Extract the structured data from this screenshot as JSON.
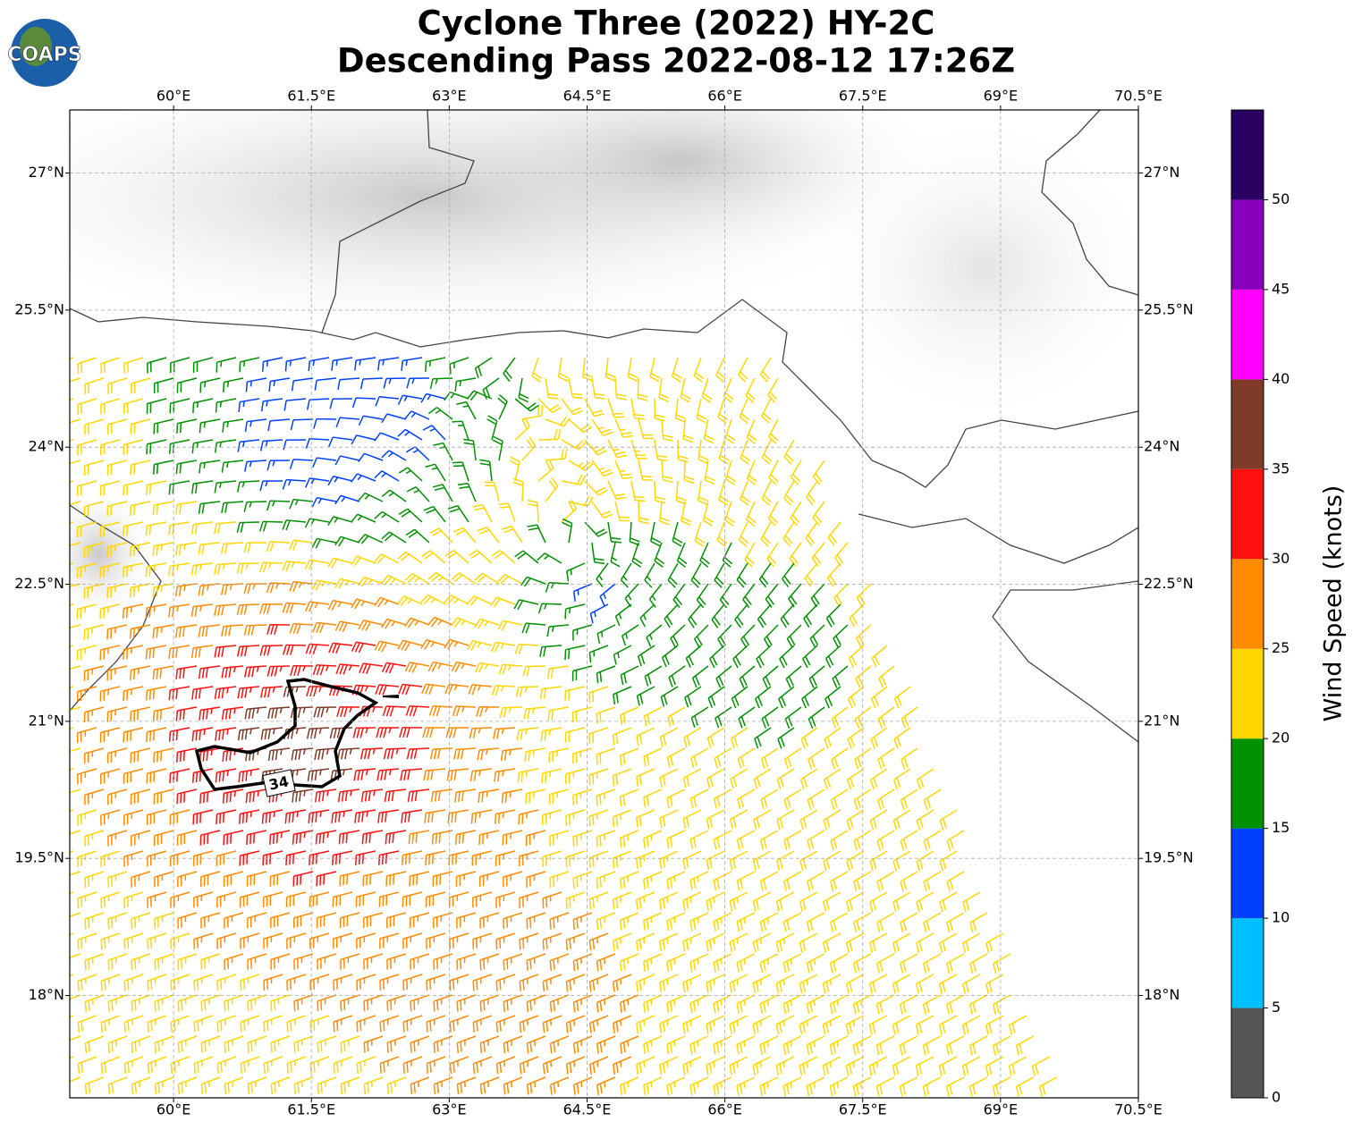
{
  "chart_data": {
    "type": "wind_map",
    "title": "Cyclone Three (2022) HY-2C",
    "subtitle": "Descending Pass 2022-08-12 17:26Z",
    "xlim": [
      58.87,
      70.5
    ],
    "ylim": [
      16.88,
      27.69
    ],
    "xticks": [
      {
        "value": 60,
        "label": "60°E"
      },
      {
        "value": 61.5,
        "label": "61.5°E"
      },
      {
        "value": 63,
        "label": "63°E"
      },
      {
        "value": 64.5,
        "label": "64.5°E"
      },
      {
        "value": 66,
        "label": "66°E"
      },
      {
        "value": 67.5,
        "label": "67.5°E"
      },
      {
        "value": 69,
        "label": "69°E"
      },
      {
        "value": 70.5,
        "label": "70.5°E"
      }
    ],
    "yticks": [
      {
        "value": 18,
        "label": "18°N"
      },
      {
        "value": 19.5,
        "label": "19.5°N"
      },
      {
        "value": 21,
        "label": "21°N"
      },
      {
        "value": 22.5,
        "label": "22.5°N"
      },
      {
        "value": 24,
        "label": "24°N"
      },
      {
        "value": 25.5,
        "label": "25.5°N"
      },
      {
        "value": 27,
        "label": "27°N"
      }
    ],
    "grid": true,
    "contour_label": "34",
    "colorbar": {
      "label": "Wind Speed (knots)",
      "bounds": [
        0,
        5,
        10,
        15,
        20,
        25,
        30,
        35,
        40,
        45,
        50,
        55
      ],
      "colors": [
        "#555555",
        "#00bfff",
        "#0040ff",
        "#009000",
        "#ffd700",
        "#ff8c00",
        "#ff1010",
        "#7f3a28",
        "#ff00ff",
        "#8800bb",
        "#2a0060"
      ],
      "ticks": [
        0,
        5,
        10,
        15,
        20,
        25,
        30,
        35,
        40,
        45,
        50
      ]
    }
  },
  "logo": "COAPS"
}
